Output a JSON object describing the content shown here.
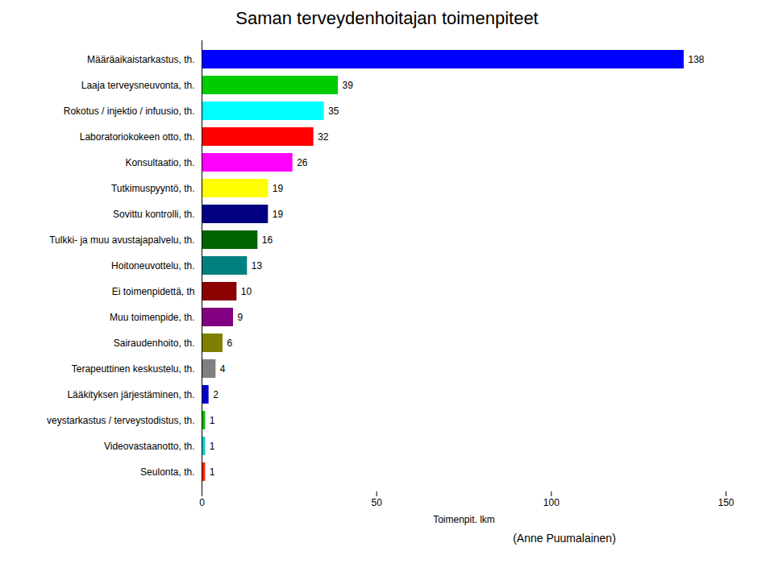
{
  "chart_data": {
    "type": "bar",
    "orientation": "horizontal",
    "title": "Saman terveydenhoitajan toimenpiteet",
    "x_label": "Toimenpit. lkm",
    "annotations": [
      "(Anne Puumalainen)"
    ],
    "categories": [
      "Määräaikaistarkastus, th.",
      "Laaja terveysneuvonta, th.",
      "Rokotus / injektio / infuusio, th.",
      "Laboratoriokokeen otto, th.",
      "Konsultaatio, th.",
      "Tutkimuspyyntö, th.",
      "Sovittu kontrolli, th.",
      "Tulkki- ja muu avustajapalvelu, th.",
      "Hoitoneuvottelu, th.",
      "Ei toimenpidettä, th",
      "Muu toimenpide, th.",
      "Sairaudenhoito, th.",
      "Terapeuttinen keskustelu, th.",
      "Lääkityksen järjestäminen, th.",
      "veystarkastus / terveystodistus, th.",
      "Videovastaanotto, th.",
      "Seulonta, th."
    ],
    "values": [
      138,
      39,
      35,
      32,
      26,
      19,
      19,
      16,
      13,
      10,
      9,
      6,
      4,
      2,
      1,
      1,
      1
    ],
    "colors": [
      "#0000FF",
      "#00CC00",
      "#00FFFF",
      "#FF0000",
      "#FF00FF",
      "#FFFF00",
      "#000080",
      "#006400",
      "#008080",
      "#8B0000",
      "#800080",
      "#808000",
      "#808080",
      "#0000CD",
      "#00BB00",
      "#00CCCC",
      "#FF2200"
    ],
    "xlim": [
      0,
      150
    ],
    "xticks": [
      0,
      50,
      100,
      150
    ],
    "data_labels": true,
    "grid": false
  }
}
